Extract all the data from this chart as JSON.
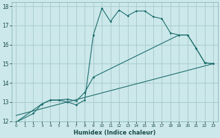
{
  "title": "",
  "xlabel": "Humidex (Indice chaleur)",
  "bg_color": "#cce8ea",
  "grid_color": "#aacccc",
  "line_color": "#1a6b6b",
  "xlim": [
    -0.5,
    23.5
  ],
  "ylim": [
    12,
    18.2
  ],
  "xticks": [
    0,
    1,
    2,
    3,
    4,
    5,
    6,
    7,
    8,
    9,
    10,
    11,
    12,
    13,
    14,
    15,
    16,
    17,
    18,
    19,
    20,
    21,
    22,
    23
  ],
  "yticks": [
    12,
    13,
    14,
    15,
    16,
    17,
    18
  ],
  "line1_x": [
    0,
    2,
    3,
    4,
    5,
    6,
    7,
    8,
    9,
    10,
    11,
    12,
    13,
    14,
    15,
    16,
    17,
    18,
    19,
    20,
    21,
    22,
    23
  ],
  "line1_y": [
    11.95,
    12.4,
    12.9,
    13.1,
    13.1,
    13.0,
    12.85,
    13.1,
    16.5,
    17.9,
    17.2,
    17.8,
    17.5,
    17.75,
    17.75,
    17.45,
    17.35,
    16.6,
    16.5,
    16.5,
    15.8,
    15.05,
    15.0
  ],
  "line2_x": [
    0,
    3,
    4,
    5,
    6,
    7,
    8,
    9,
    19,
    20,
    21,
    22,
    23
  ],
  "line2_y": [
    11.95,
    12.9,
    13.1,
    13.1,
    13.15,
    13.05,
    13.5,
    14.3,
    16.5,
    16.5,
    15.8,
    15.05,
    15.0
  ],
  "line3_x": [
    0,
    23
  ],
  "line3_y": [
    12.3,
    15.0
  ]
}
